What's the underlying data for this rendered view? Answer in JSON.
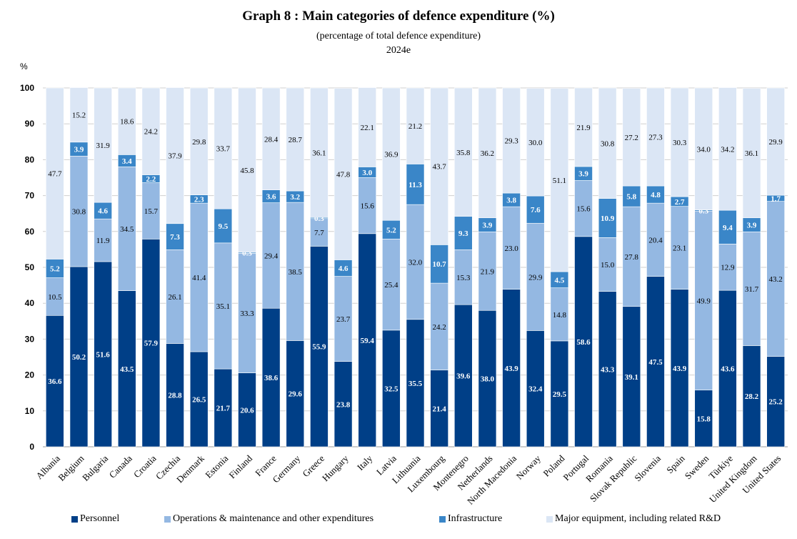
{
  "title": "Graph 8 : Main categories of defence expenditure (%)",
  "subtitle": "(percentage of total defence expenditure)",
  "year": "2024e",
  "colors": {
    "personnel": "#003f87",
    "operations": "#94b8e2",
    "infrastructure": "#3a86c8",
    "equipment": "#dbe6f5",
    "grid": "#cfcfcf"
  },
  "chart_data": {
    "type": "bar",
    "stacked": true,
    "title": "Graph 8 : Main categories of defence expenditure (%)",
    "ylabel": "%",
    "ylim": [
      0,
      100
    ],
    "yticks": [
      "0",
      "10",
      "20",
      "30",
      "40",
      "50",
      "60",
      "70",
      "80",
      "90",
      "100"
    ],
    "legend_position": "bottom",
    "categories": [
      "Albania",
      "Belgium",
      "Bulgaria",
      "Canada",
      "Croatia",
      "Czechia",
      "Denmark",
      "Estonia",
      "Finland",
      "France",
      "Germany",
      "Greece",
      "Hungary",
      "Italy",
      "Latvia",
      "Lithuania",
      "Luxembourg",
      "Montenegro",
      "Netherlands",
      "North Macedonia",
      "Norway",
      "Poland",
      "Portugal",
      "Romania",
      "Slovak Republic",
      "Slovenia",
      "Spain",
      "Sweden",
      "Türkiye",
      "United Kingdom",
      "United States"
    ],
    "series": [
      {
        "name": "Personnel",
        "key": "personnel",
        "values": [
          36.6,
          50.2,
          51.6,
          43.5,
          57.9,
          28.8,
          26.5,
          21.7,
          20.6,
          38.6,
          29.6,
          55.9,
          23.8,
          59.4,
          32.5,
          35.5,
          21.4,
          39.6,
          38.0,
          43.9,
          32.4,
          29.5,
          58.6,
          43.3,
          39.1,
          47.5,
          43.9,
          15.8,
          43.6,
          28.2,
          25.2
        ]
      },
      {
        "name": "Operations & maintenance and other expenditures",
        "key": "operations",
        "values": [
          10.5,
          30.8,
          11.9,
          34.5,
          15.7,
          26.1,
          41.4,
          35.1,
          33.3,
          29.4,
          38.5,
          7.7,
          23.7,
          15.6,
          25.4,
          32.0,
          24.2,
          15.3,
          21.9,
          23.0,
          29.9,
          14.8,
          15.6,
          15.0,
          27.8,
          20.4,
          23.1,
          49.9,
          12.9,
          31.7,
          43.2
        ]
      },
      {
        "name": "Infrastructure",
        "key": "infrastructure",
        "values": [
          5.2,
          3.9,
          4.6,
          3.4,
          2.2,
          7.3,
          2.3,
          9.5,
          0.3,
          3.6,
          3.2,
          0.3,
          4.6,
          3.0,
          5.2,
          11.3,
          10.7,
          9.3,
          3.9,
          3.8,
          7.6,
          4.5,
          3.9,
          10.9,
          5.8,
          4.8,
          2.7,
          0.3,
          9.4,
          3.9,
          1.7
        ]
      },
      {
        "name": "Major equipment, including related R&D",
        "key": "equipment",
        "values": [
          47.7,
          15.2,
          31.9,
          18.6,
          24.2,
          37.9,
          29.8,
          33.7,
          45.8,
          28.4,
          28.7,
          36.1,
          47.8,
          22.1,
          36.9,
          21.2,
          43.7,
          35.8,
          36.2,
          29.3,
          30.0,
          51.1,
          21.9,
          30.8,
          27.2,
          27.3,
          30.3,
          34.0,
          34.2,
          36.1,
          29.9
        ]
      }
    ]
  }
}
